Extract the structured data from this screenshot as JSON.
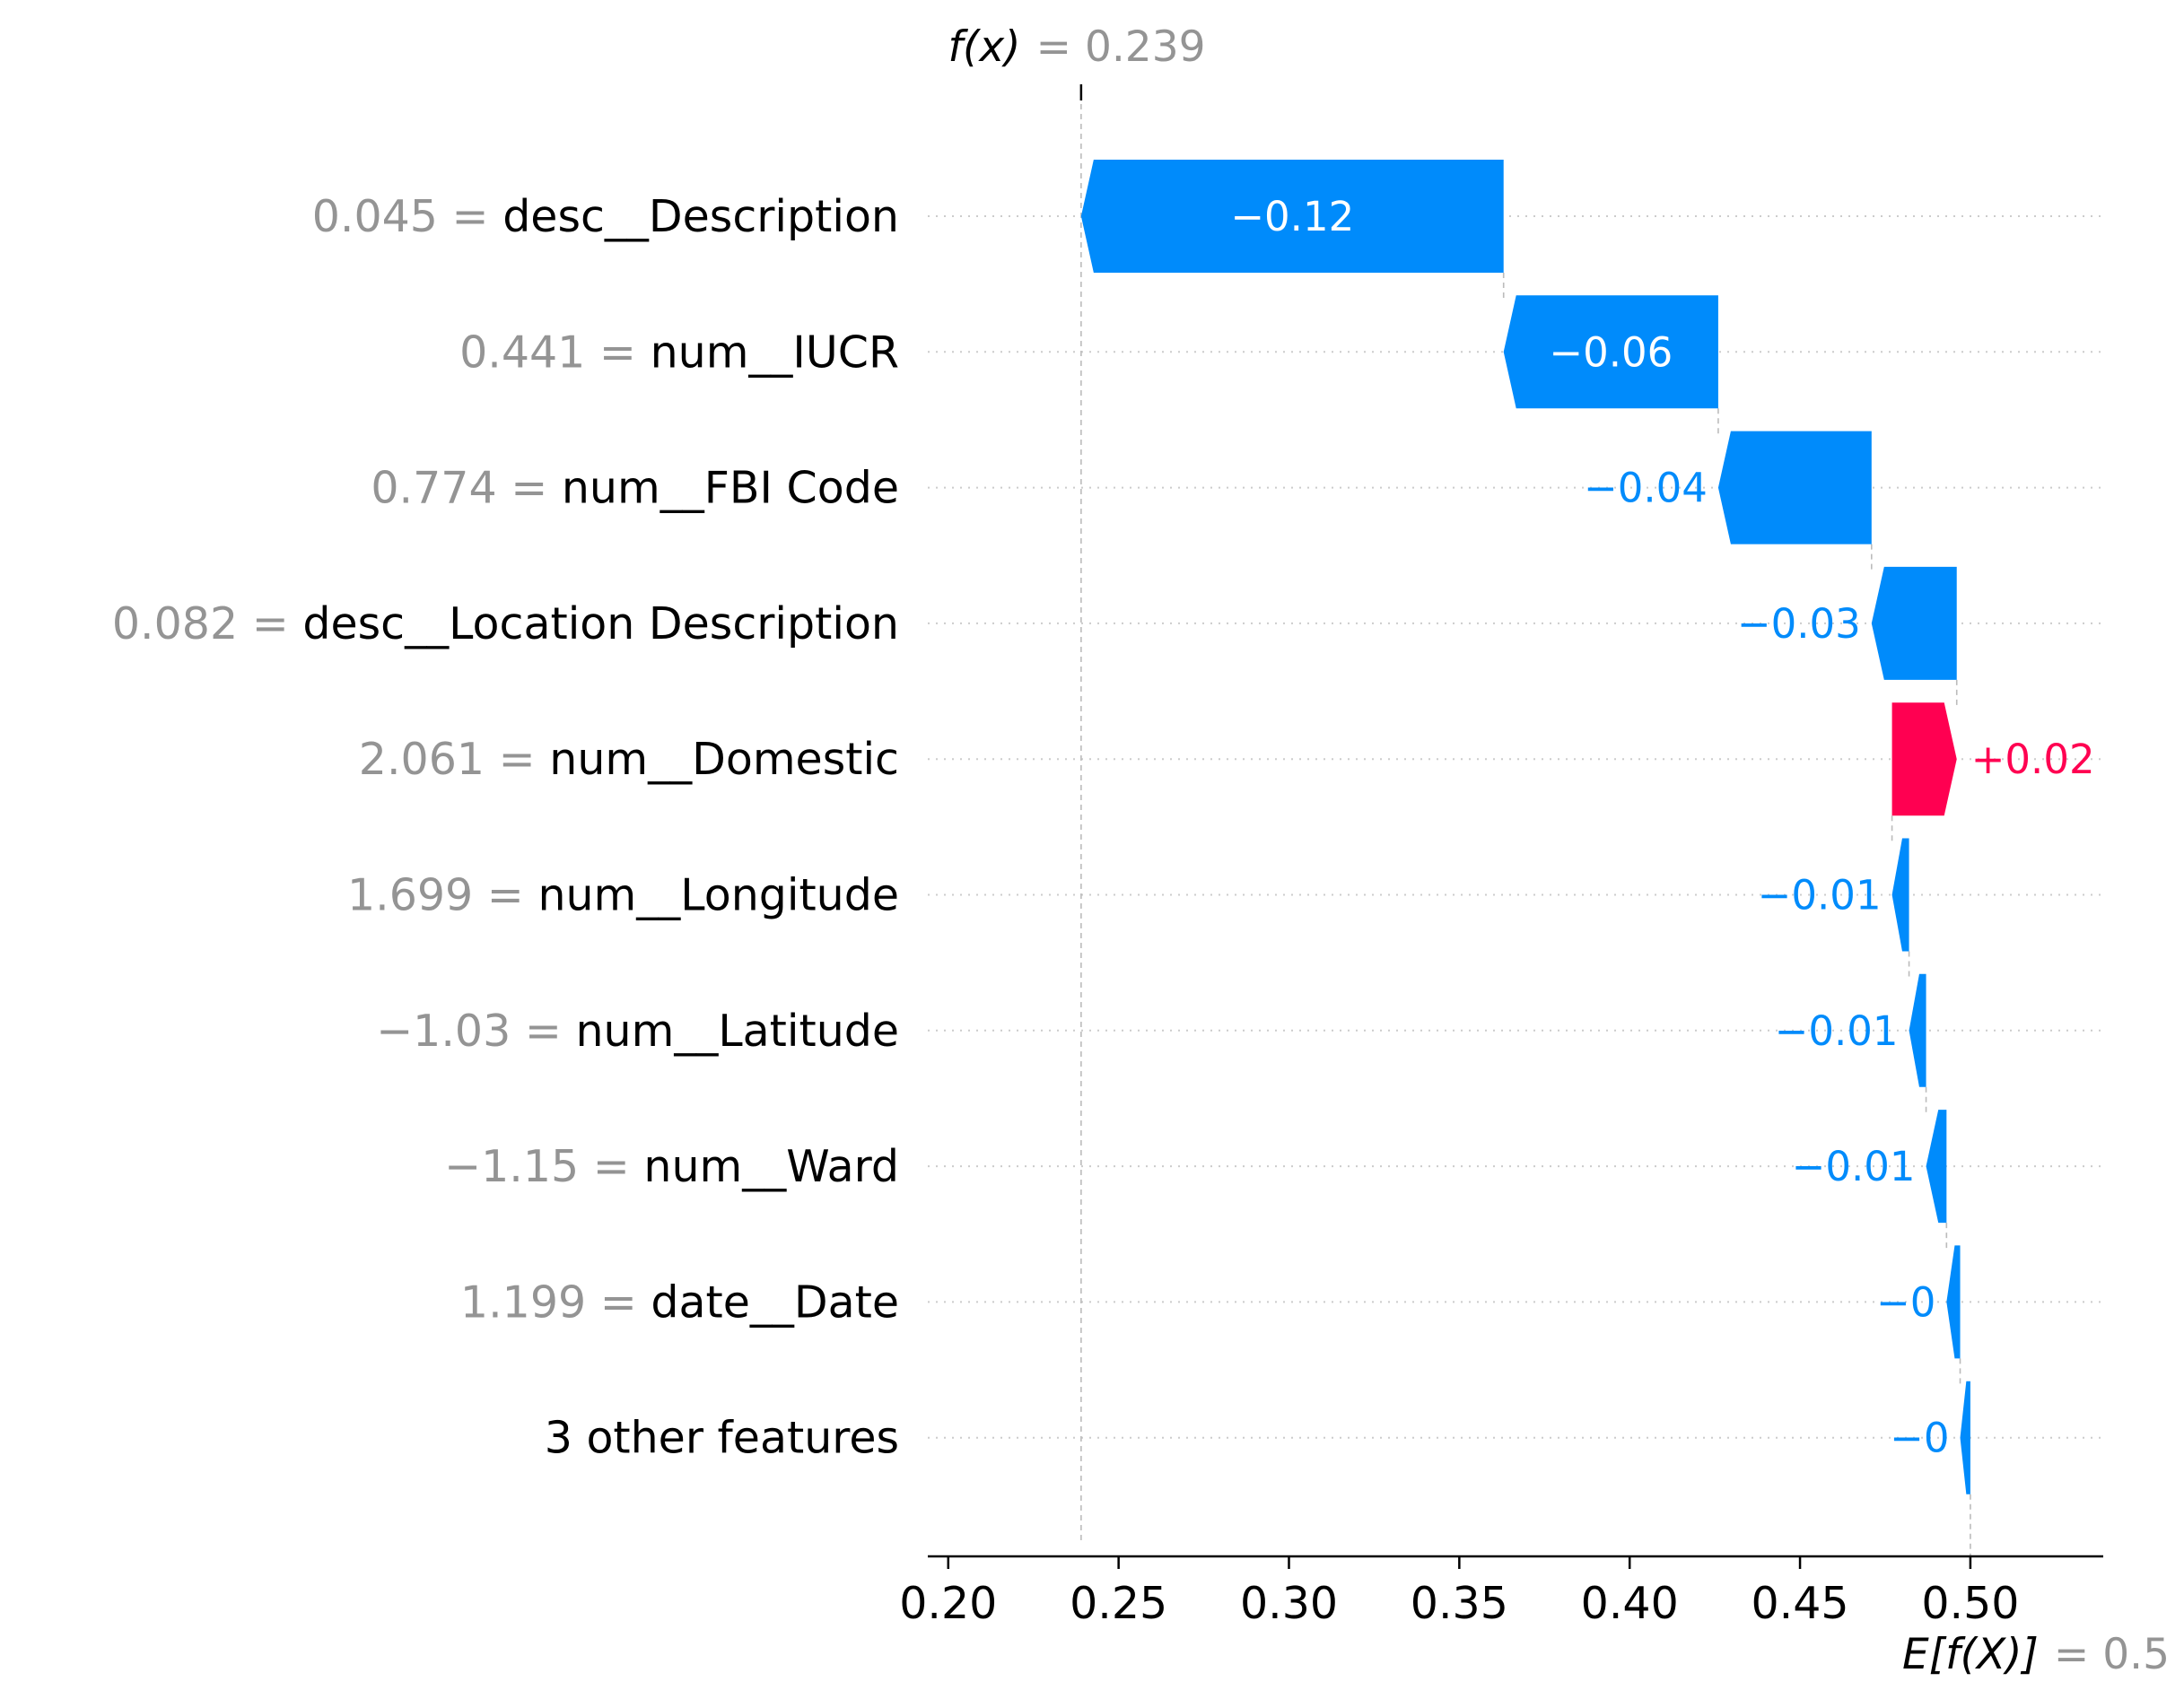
{
  "chart_data": {
    "type": "waterfall",
    "fx_label": "f(x)",
    "fx_value": "0.239",
    "fx": 0.239,
    "ex_label": "E[f(X)]",
    "ex_value": "0.5",
    "base": 0.5,
    "xlim": [
      0.194,
      0.539
    ],
    "x_ticks": [
      0.2,
      0.25,
      0.3,
      0.35,
      0.4,
      0.45,
      0.5
    ],
    "x_tick_labels": [
      "0.20",
      "0.25",
      "0.30",
      "0.35",
      "0.40",
      "0.45",
      "0.50"
    ],
    "features": [
      {
        "value": "0.045",
        "name": "desc__Description",
        "start": 0.363,
        "end": 0.239,
        "label": "−0.12"
      },
      {
        "value": "0.441",
        "name": "num__IUCR",
        "start": 0.426,
        "end": 0.363,
        "label": "−0.06"
      },
      {
        "value": "0.774",
        "name": "num__FBI Code",
        "start": 0.471,
        "end": 0.426,
        "label": "−0.04"
      },
      {
        "value": "0.082",
        "name": "desc__Location Description",
        "start": 0.496,
        "end": 0.471,
        "label": "−0.03"
      },
      {
        "value": "2.061",
        "name": "num__Domestic",
        "start": 0.477,
        "end": 0.496,
        "label": "+0.02"
      },
      {
        "value": "1.699",
        "name": "num__Longitude",
        "start": 0.482,
        "end": 0.477,
        "label": "−0.01"
      },
      {
        "value": "−1.03",
        "name": "num__Latitude",
        "start": 0.487,
        "end": 0.482,
        "label": "−0.01"
      },
      {
        "value": "−1.15",
        "name": "num__Ward",
        "start": 0.493,
        "end": 0.487,
        "label": "−0.01"
      },
      {
        "value": "1.199",
        "name": "date__Date",
        "start": 0.497,
        "end": 0.493,
        "label": "−0"
      },
      {
        "value": "",
        "name": "3 other features",
        "start": 0.5,
        "end": 0.497,
        "label": "−0"
      }
    ],
    "colors": {
      "negative": "#008bfb",
      "positive": "#ff0051",
      "grid": "#cccccc",
      "muted": "#949494"
    }
  }
}
